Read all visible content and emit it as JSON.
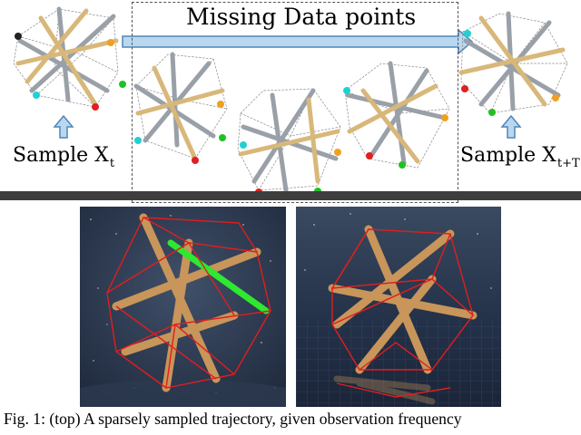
{
  "top": {
    "missing_label": "Missing Data points",
    "sample_left": {
      "text": "Sample X",
      "sub": "t"
    },
    "sample_right": {
      "text": "Sample X",
      "sub": "t+T"
    }
  },
  "caption": "Fig. 1: (top) A sparsely sampled trajectory, given observation frequency",
  "colors": {
    "arrow_fill": "#b9d8f0",
    "arrow_stroke": "#4f86b8",
    "divider": "#3e3e3e",
    "rod": "#c8955a",
    "cable": "#e01e1e",
    "highlight_rod": "#2fe82f",
    "sky": "#1e2b3e"
  }
}
